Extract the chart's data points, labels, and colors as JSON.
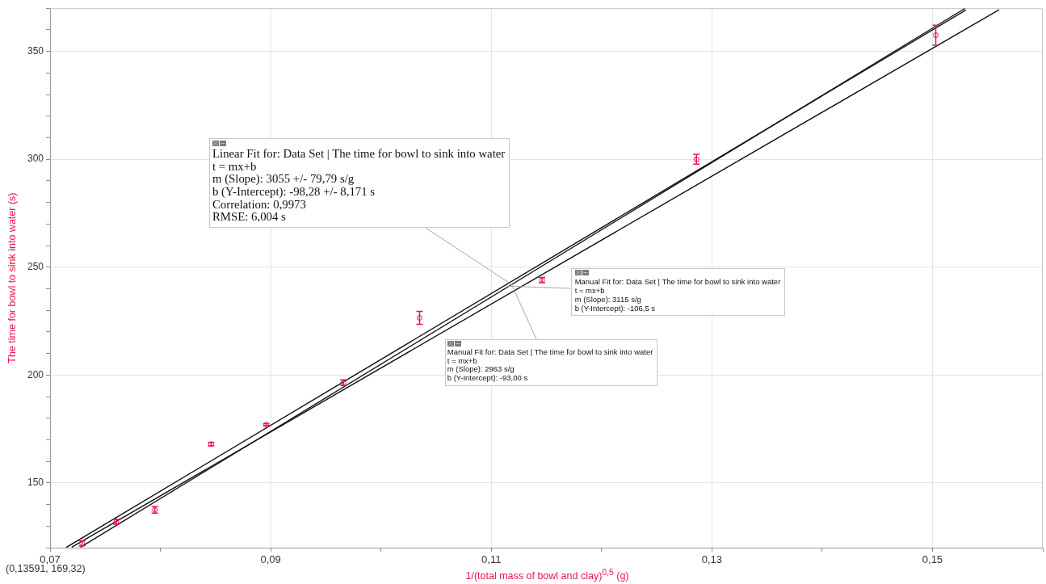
{
  "chart_data": {
    "type": "scatter",
    "xlabel": "1/(total mass of bowl and clay)$^{0,5}$ (g)",
    "ylabel": "The time for bowl to sink into water (s)",
    "x": [
      0.0729,
      0.076,
      0.0795,
      0.0846,
      0.0896,
      0.0966,
      0.1035,
      0.1146,
      0.1286,
      0.1503
    ],
    "series": [
      {
        "color": "#e8174a",
        "values": [
          122,
          132,
          137.5,
          168,
          177,
          196.5,
          226.5,
          244,
          300,
          357.5
        ],
        "errors": [
          1.2,
          1.1,
          1.5,
          0.8,
          0.5,
          1.3,
          3,
          1.2,
          2.3,
          4.6
        ]
      },
      {
        "type": "line",
        "color": "#111111",
        "marker": "none",
        "x": [
          0.0715,
          0.153
        ],
        "values": [
          120.2,
          369.1
        ]
      },
      {
        "type": "line",
        "color": "#111111",
        "marker": "none",
        "x": [
          0.0728,
          0.1529
        ],
        "values": [
          120.3,
          369.8
        ]
      },
      {
        "type": "line",
        "color": "#111111",
        "marker": "none",
        "x": [
          0.072,
          0.156
        ],
        "values": [
          120.3,
          369.2
        ]
      }
    ],
    "xlim": [
      0.07,
      0.16
    ],
    "xticks": [
      {
        "value": 0.07,
        "label": "0,07"
      },
      {
        "value": 0.08,
        "label": null
      },
      {
        "value": 0.09,
        "label": "0,09"
      },
      {
        "value": 0.1,
        "label": null
      },
      {
        "value": 0.11,
        "label": "0,11"
      },
      {
        "value": 0.12,
        "label": null
      },
      {
        "value": 0.13,
        "label": "0,13"
      },
      {
        "value": 0.14,
        "label": null
      },
      {
        "value": 0.15,
        "label": "0,15"
      },
      {
        "value": 0.16,
        "label": null
      }
    ],
    "ylim": [
      120,
      370
    ],
    "yticks": [
      {
        "value": 120,
        "label": null
      },
      {
        "value": 130,
        "label": null
      },
      {
        "value": 140,
        "label": null
      },
      150,
      {
        "value": 160,
        "label": null
      },
      {
        "value": 170,
        "label": null
      },
      {
        "value": 180,
        "label": null
      },
      {
        "value": 190,
        "label": null
      },
      200,
      {
        "value": 210,
        "label": null
      },
      {
        "value": 220,
        "label": null
      },
      {
        "value": 230,
        "label": null
      },
      {
        "value": 240,
        "label": null
      },
      250,
      {
        "value": 260,
        "label": null
      },
      {
        "value": 270,
        "label": null
      },
      {
        "value": 280,
        "label": null
      },
      {
        "value": 290,
        "label": null
      },
      300,
      {
        "value": 310,
        "label": null
      },
      {
        "value": 320,
        "label": null
      },
      {
        "value": 330,
        "label": null
      },
      {
        "value": 340,
        "label": null
      },
      350,
      {
        "value": 360,
        "label": null
      },
      {
        "value": 370,
        "label": null
      }
    ],
    "grid": true,
    "annotations": [
      {
        "text": "Linear Fit for: Data Set | The time for bowl to sink into water\nt = mx+b\nm (Slope): 3055 +/- 79,79 s/g\nb (Y-Intercept): -98,28 +/- 8,171 s\nCorrelation: 0,9973\nRMSE: 6,004 s",
        "x": 0.1116,
        "y": 242.8
      },
      {
        "text": "Manual Fit for: Data Set | The time for bowl to sink into water\nt = mx+b\nm (Slope): 3115 s/g\nb (Y-Intercept): -106,5 s",
        "x": 0.1115,
        "y": 241.2
      },
      {
        "text": "Manual Fit for: Data Set | The time for bowl to sink into water\nt = mx+b\nm (Slope): 2963 s/g\nb (Y-Intercept): -93,00 s",
        "x": 0.1118,
        "y": 242.4
      },
      "(0,13591, 169,32)"
    ]
  }
}
